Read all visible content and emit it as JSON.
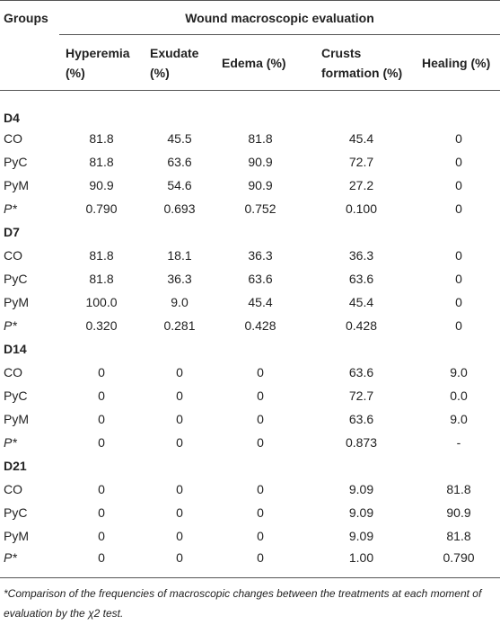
{
  "table": {
    "header": {
      "groups": "Groups",
      "span": "Wound macroscopic evaluation",
      "columns": [
        "Hyperemia (%)",
        "Exudate (%)",
        "Edema (%)",
        "Crusts formation (%)",
        "Healing (%)"
      ]
    },
    "sections": [
      {
        "label": "D4",
        "rows": [
          [
            "CO",
            "81.8",
            "45.5",
            "81.8",
            "45.4",
            "0"
          ],
          [
            "PyC",
            "81.8",
            "63.6",
            "90.9",
            "72.7",
            "0"
          ],
          [
            "PyM",
            "90.9",
            "54.6",
            "90.9",
            "27.2",
            "0"
          ],
          [
            "P*",
            "0.790",
            "0.693",
            "0.752",
            "0.100",
            "0"
          ]
        ]
      },
      {
        "label": "D7",
        "rows": [
          [
            "CO",
            "81.8",
            "18.1",
            "36.3",
            "36.3",
            "0"
          ],
          [
            "PyC",
            "81.8",
            "36.3",
            "63.6",
            "63.6",
            "0"
          ],
          [
            "PyM",
            "100.0",
            "9.0",
            "45.4",
            "45.4",
            "0"
          ],
          [
            "P*",
            "0.320",
            "0.281",
            "0.428",
            "0.428",
            "0"
          ]
        ]
      },
      {
        "label": "D14",
        "rows": [
          [
            "CO",
            "0",
            "0",
            "0",
            "63.6",
            "9.0"
          ],
          [
            "PyC",
            "0",
            "0",
            "0",
            "72.7",
            "0.0"
          ],
          [
            "PyM",
            "0",
            "0",
            "0",
            "63.6",
            "9.0"
          ],
          [
            "P*",
            "0",
            "0",
            "0",
            "0.873",
            "-"
          ]
        ]
      },
      {
        "label": "D21",
        "rows": [
          [
            "CO",
            "0",
            "0",
            "0",
            "9.09",
            "81.8"
          ],
          [
            "PyC",
            "0",
            "0",
            "0",
            "9.09",
            "90.9"
          ],
          [
            "PyM",
            "0",
            "0",
            "0",
            "9.09",
            "81.8"
          ],
          [
            "P*",
            "0",
            "0",
            "0",
            "1.00",
            "0.790"
          ]
        ]
      }
    ],
    "footnote": "*Comparison of the frequencies of macroscopic changes between the treatments at each moment of evaluation by the χ2 test."
  }
}
